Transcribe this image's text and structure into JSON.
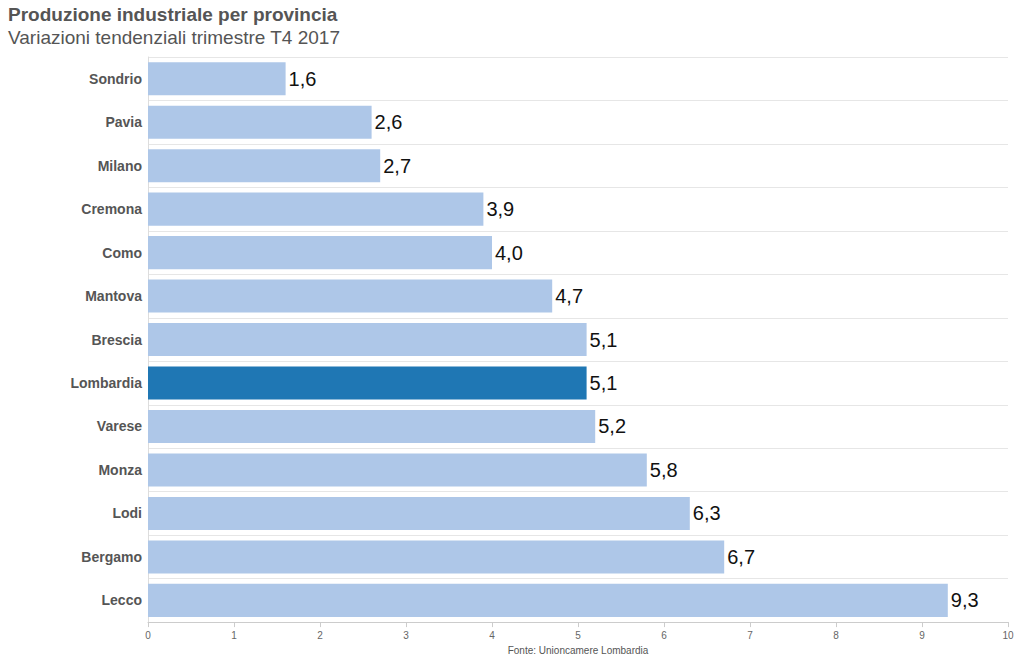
{
  "chart_data": {
    "type": "bar",
    "orientation": "horizontal",
    "title": "Produzione industriale per provincia",
    "subtitle": "Variazioni tendenziali trimestre T4 2017",
    "x_label": "Fonte: Unioncamere Lombardia",
    "categories": [
      "Sondrio",
      "Pavia",
      "Milano",
      "Cremona",
      "Como",
      "Mantova",
      "Brescia",
      "Lombardia",
      "Varese",
      "Monza",
      "Lodi",
      "Bergamo",
      "Lecco"
    ],
    "values": [
      1.6,
      2.6,
      2.7,
      3.9,
      4.0,
      4.7,
      5.1,
      5.1,
      5.2,
      5.8,
      6.3,
      6.7,
      9.3
    ],
    "value_labels": [
      "1,6",
      "2,6",
      "2,7",
      "3,9",
      "4,0",
      "4,7",
      "5,1",
      "5,1",
      "5,2",
      "5,8",
      "6,3",
      "6,7",
      "9,3"
    ],
    "colors": [
      "#aec7e8",
      "#aec7e8",
      "#aec7e8",
      "#aec7e8",
      "#aec7e8",
      "#aec7e8",
      "#aec7e8",
      "#1f77b4",
      "#aec7e8",
      "#aec7e8",
      "#aec7e8",
      "#aec7e8",
      "#aec7e8"
    ],
    "xlim": [
      0,
      10
    ],
    "xticks": [
      0,
      1,
      2,
      3,
      4,
      5,
      6,
      7,
      8,
      9,
      10
    ],
    "data_labels": true,
    "grid": false
  }
}
